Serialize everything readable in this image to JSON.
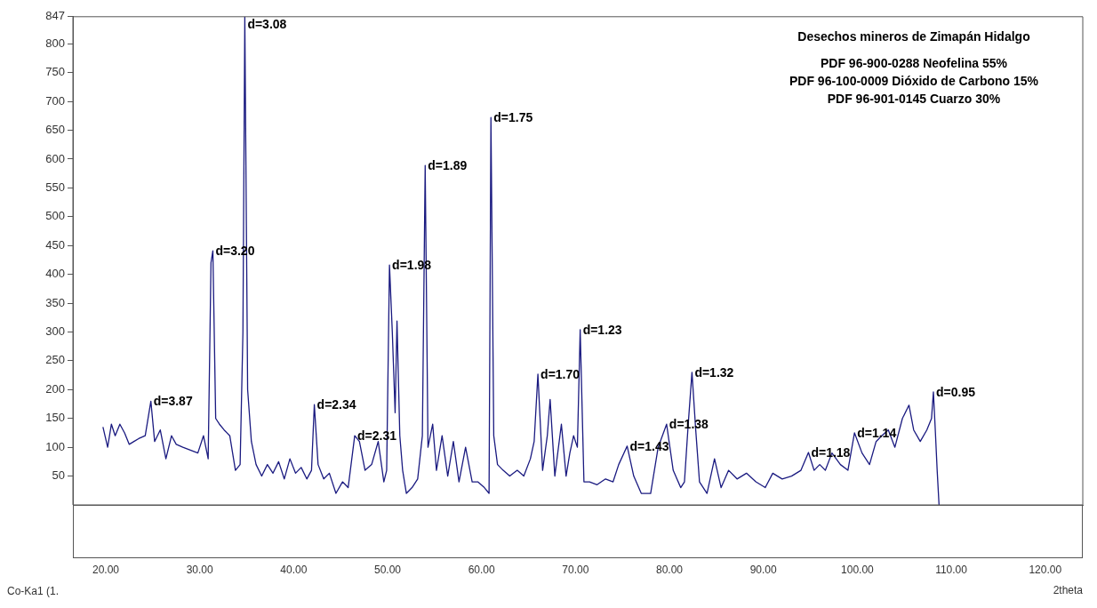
{
  "chart_data": {
    "type": "line",
    "xlabel": "2theta",
    "legend": false,
    "grid": false,
    "marker": "none",
    "line_style": "solid",
    "xlim": [
      16.5,
      124
    ],
    "ylim": [
      0,
      847
    ],
    "xticks": [
      {
        "value": 20,
        "label": "20.00"
      },
      {
        "value": 30,
        "label": "30.00"
      },
      {
        "value": 40,
        "label": "40.00"
      },
      {
        "value": 50,
        "label": "50.00"
      },
      {
        "value": 60,
        "label": "60.00"
      },
      {
        "value": 70,
        "label": "70.00"
      },
      {
        "value": 80,
        "label": "80.00"
      },
      {
        "value": 90,
        "label": "90.00"
      },
      {
        "value": 100,
        "label": "100.00"
      },
      {
        "value": 110,
        "label": "110.00"
      },
      {
        "value": 120,
        "label": "120.00"
      }
    ],
    "yticks": [
      50,
      100,
      150,
      200,
      250,
      300,
      350,
      400,
      450,
      500,
      550,
      600,
      650,
      700,
      750,
      800,
      847
    ],
    "series": [
      {
        "color": "#1a1a80",
        "x": [
          19.7,
          20.2,
          20.6,
          21.0,
          21.5,
          22.0,
          22.5,
          23.0,
          23.5,
          24.2,
          24.8,
          25.2,
          25.8,
          26.4,
          27.0,
          27.5,
          28.2,
          29.0,
          29.8,
          30.4,
          30.9,
          31.2,
          31.4,
          31.7,
          32.1,
          32.6,
          33.2,
          33.8,
          34.3,
          34.6,
          34.8,
          35.1,
          35.5,
          36.0,
          36.6,
          37.2,
          37.8,
          38.4,
          39.0,
          39.6,
          40.2,
          40.8,
          41.4,
          41.9,
          42.2,
          42.6,
          43.2,
          43.8,
          44.5,
          45.2,
          45.8,
          46.5,
          47.0,
          47.6,
          48.3,
          49.0,
          49.6,
          49.9,
          50.2,
          50.5,
          50.8,
          51.0,
          51.3,
          51.6,
          52.0,
          52.6,
          53.2,
          53.7,
          54.0,
          54.3,
          54.8,
          55.2,
          55.8,
          56.4,
          57.0,
          57.6,
          58.3,
          59.0,
          59.6,
          60.3,
          60.8,
          61.0,
          61.3,
          61.7,
          62.3,
          63.0,
          63.8,
          64.5,
          65.2,
          65.6,
          66.0,
          66.5,
          67.0,
          67.3,
          67.8,
          68.5,
          69.0,
          69.4,
          69.8,
          70.2,
          70.5,
          70.9,
          71.5,
          72.3,
          73.2,
          74.0,
          74.6,
          75.5,
          76.2,
          77.0,
          78.0,
          78.8,
          79.7,
          80.4,
          81.2,
          81.6,
          82.0,
          82.4,
          82.8,
          83.2,
          84.0,
          84.8,
          85.5,
          86.3,
          87.2,
          88.2,
          89.2,
          90.2,
          91.0,
          92.0,
          93.0,
          94.0,
          94.8,
          95.4,
          96.0,
          96.6,
          97.3,
          98.2,
          99.0,
          99.7,
          100.5,
          101.3,
          102.0,
          102.6,
          103.3,
          104.0,
          104.8,
          105.5,
          106.0,
          106.7,
          107.4,
          107.9,
          108.1,
          108.3,
          108.5,
          108.7
        ],
        "values": [
          135,
          100,
          140,
          120,
          140,
          125,
          105,
          110,
          115,
          120,
          180,
          110,
          130,
          80,
          120,
          105,
          100,
          95,
          90,
          120,
          80,
          420,
          441,
          150,
          140,
          130,
          120,
          60,
          70,
          300,
          847,
          200,
          110,
          70,
          50,
          70,
          55,
          75,
          45,
          80,
          55,
          65,
          45,
          60,
          174,
          70,
          45,
          55,
          20,
          40,
          30,
          120,
          110,
          60,
          70,
          110,
          40,
          60,
          416,
          300,
          160,
          319,
          120,
          60,
          20,
          30,
          45,
          120,
          589,
          100,
          140,
          60,
          120,
          50,
          110,
          40,
          100,
          40,
          40,
          30,
          20,
          672,
          120,
          70,
          60,
          50,
          60,
          50,
          80,
          110,
          227,
          60,
          120,
          183,
          50,
          140,
          50,
          90,
          120,
          100,
          304,
          40,
          40,
          35,
          45,
          40,
          70,
          102,
          50,
          20,
          20,
          100,
          140,
          60,
          30,
          40,
          140,
          230,
          130,
          40,
          20,
          80,
          30,
          60,
          45,
          55,
          40,
          30,
          55,
          45,
          50,
          60,
          91,
          60,
          70,
          60,
          90,
          70,
          60,
          125,
          90,
          70,
          110,
          120,
          130,
          100,
          150,
          173,
          130,
          110,
          130,
          150,
          196,
          130,
          60,
          0
        ]
      }
    ],
    "annotations": [
      {
        "text": "d=3.87",
        "x": 24.8,
        "y": 180
      },
      {
        "text": "d=3.20",
        "x": 31.4,
        "y": 441
      },
      {
        "text": "d=3.08",
        "x": 34.8,
        "y": 847
      },
      {
        "text": "d=2.34",
        "x": 42.2,
        "y": 174
      },
      {
        "text": "d=2.31",
        "x": 46.5,
        "y": 120
      },
      {
        "text": "d=1.98",
        "x": 50.2,
        "y": 416
      },
      {
        "text": "d=1.89",
        "x": 54.0,
        "y": 589
      },
      {
        "text": "d=1.75",
        "x": 61.0,
        "y": 672
      },
      {
        "text": "d=1.70",
        "x": 66.0,
        "y": 227
      },
      {
        "text": "d=1.23",
        "x": 70.5,
        "y": 304
      },
      {
        "text": "d=1.43",
        "x": 75.5,
        "y": 102
      },
      {
        "text": "d=1.38",
        "x": 79.7,
        "y": 140
      },
      {
        "text": "d=1.32",
        "x": 82.4,
        "y": 230
      },
      {
        "text": "d=1.18",
        "x": 94.8,
        "y": 91
      },
      {
        "text": "d=1.14",
        "x": 99.7,
        "y": 125
      },
      {
        "text": "d=0.95",
        "x": 108.1,
        "y": 196
      },
      "Desechos mineros de Zimapán Hidalgo",
      "PDF 96-900-0288 Neofelina 55%",
      "PDF 96-100-0009 Dióxido de Carbono 15%",
      "PDF 96-901-0145 Cuarzo 30%",
      "Co-Ka1 (1."
    ]
  }
}
